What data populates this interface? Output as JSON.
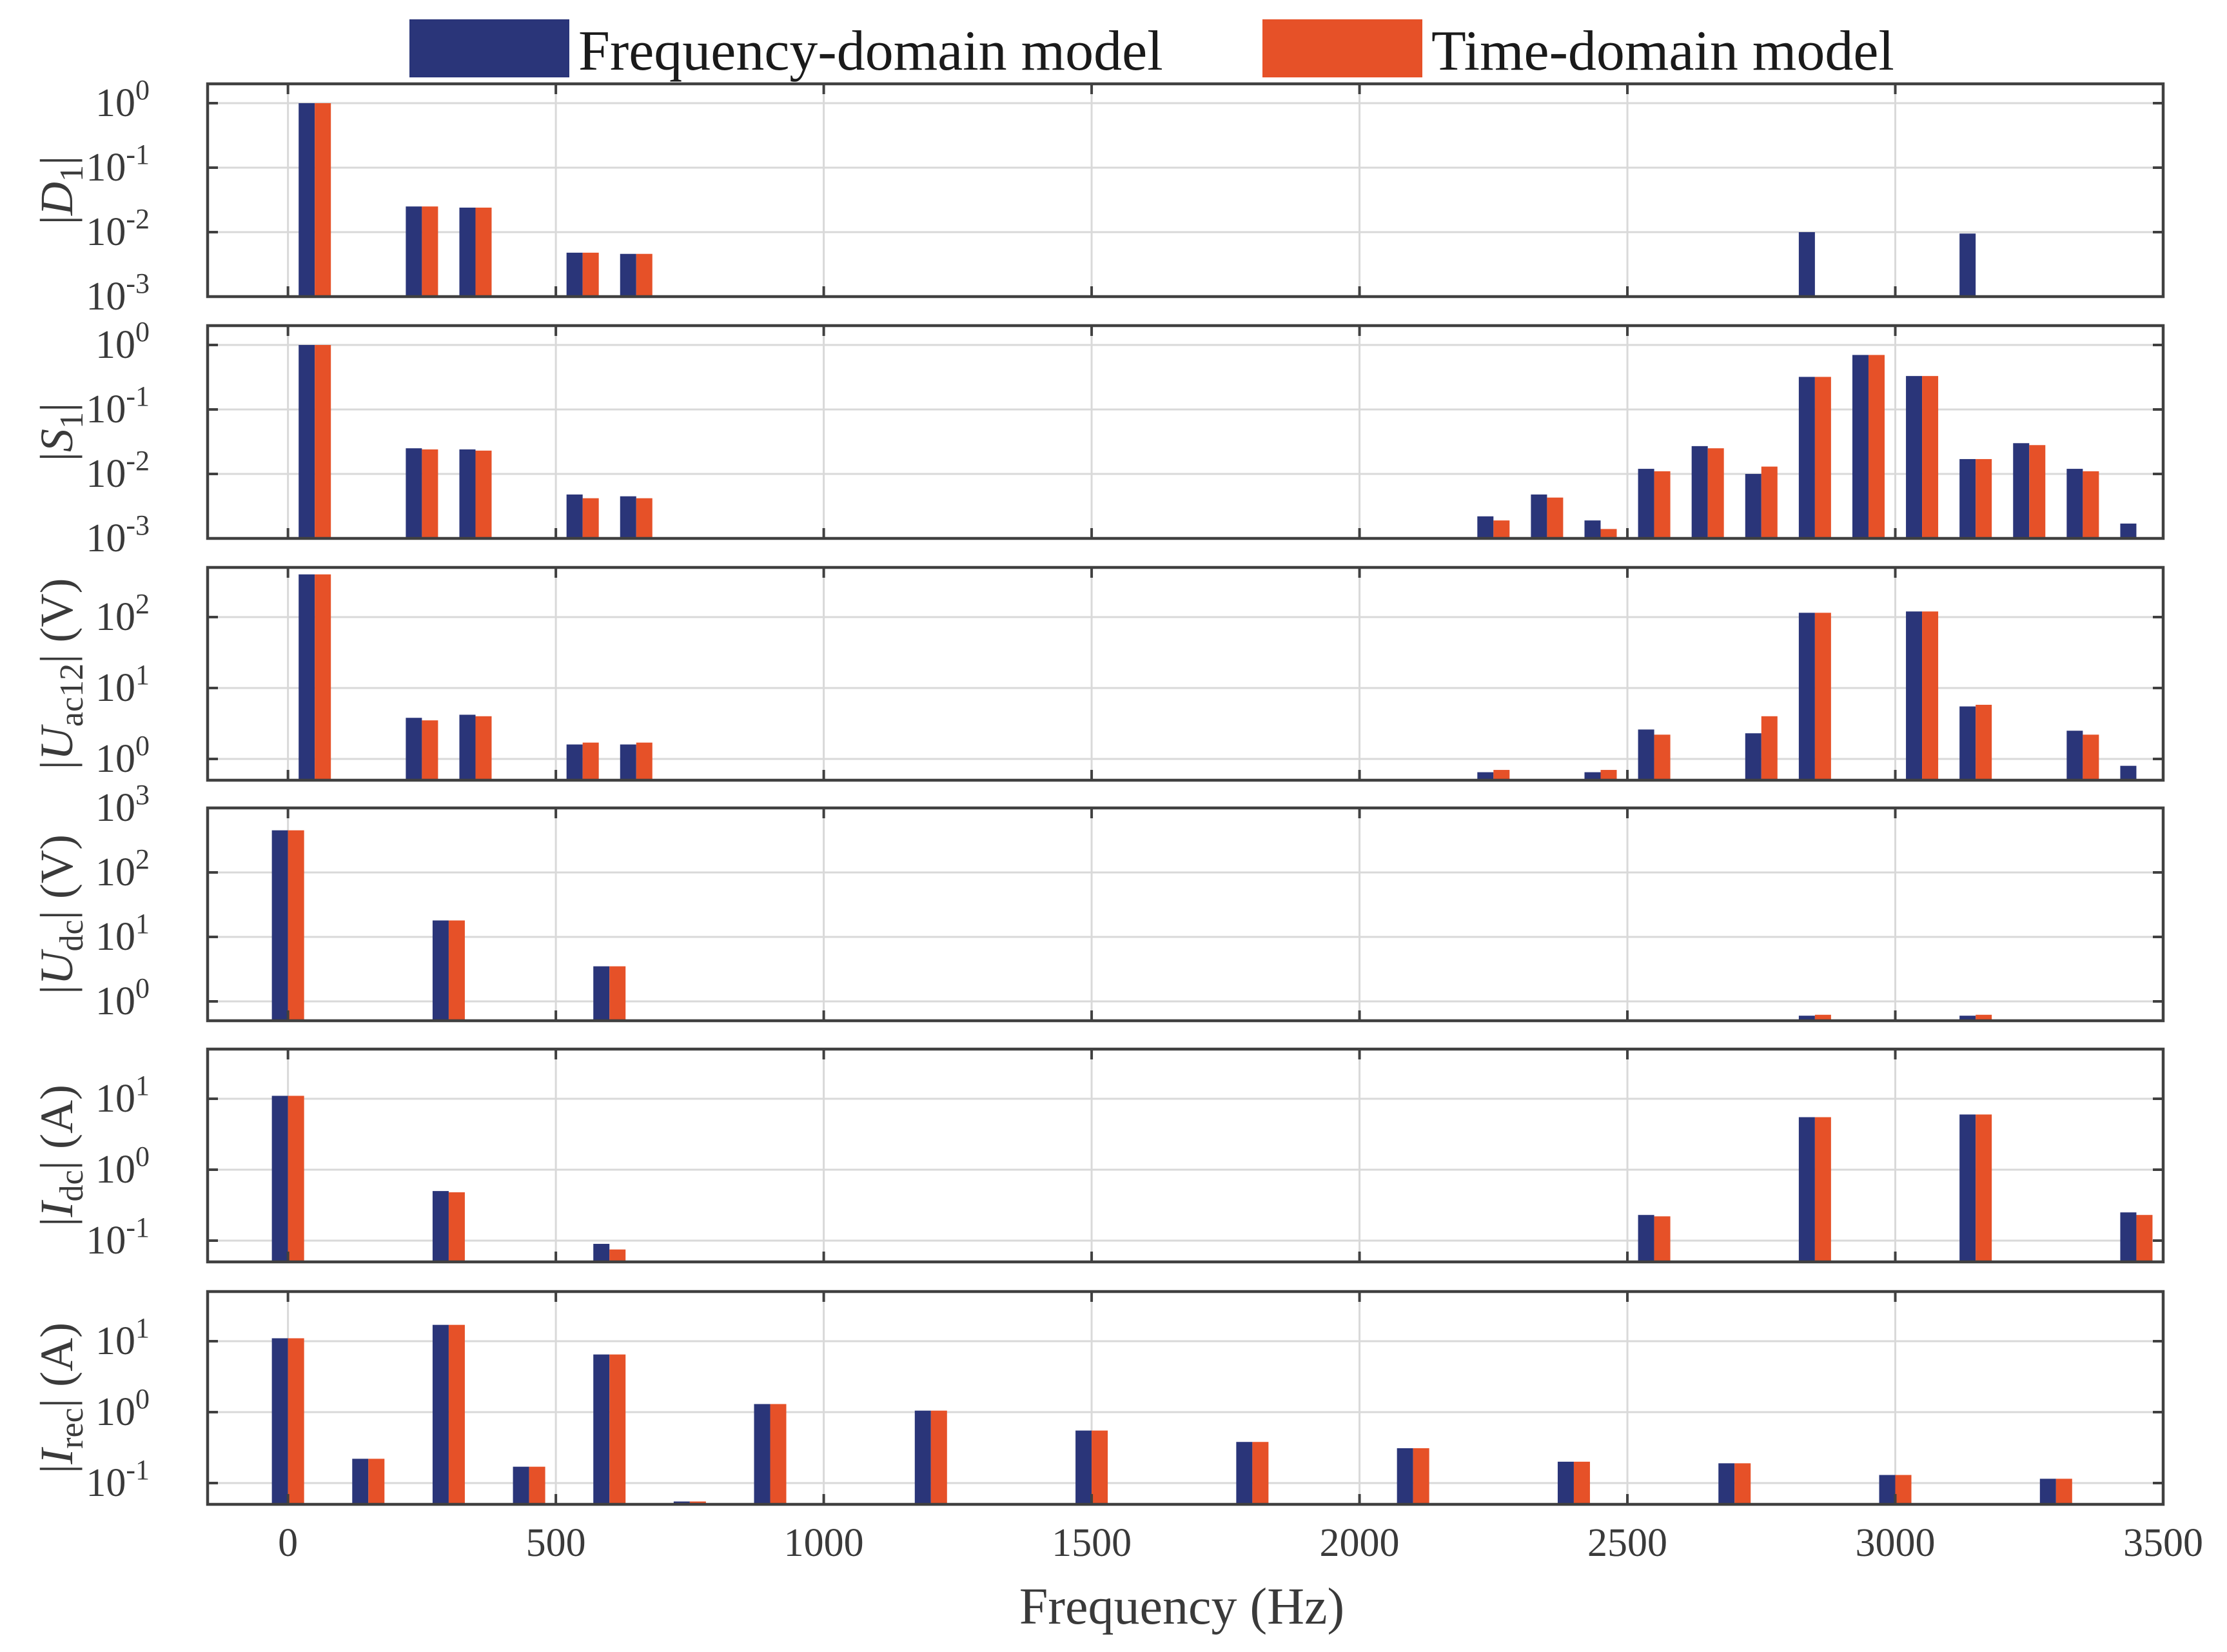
{
  "legend": {
    "entries": [
      {
        "label": "Frequency-domain model",
        "color": "#2a3579"
      },
      {
        "label": "Time-domain model",
        "color": "#e65128"
      }
    ]
  },
  "chart_data": {
    "type": "bar",
    "layout": "6 vertically stacked subplots sharing the x-axis, log-scale y-axes",
    "xlabel": "Frequency (Hz)",
    "xlim": [
      -150,
      3500
    ],
    "xticks": [
      0,
      500,
      1000,
      1500,
      2000,
      2500,
      3000,
      3500
    ],
    "series_names": [
      "Frequency-domain model",
      "Time-domain model"
    ],
    "subplots": [
      {
        "ylabel": {
          "pre": "|",
          "var": "D",
          "sub": "1",
          "post": "|"
        },
        "ylim_log10": [
          -3,
          0.3
        ],
        "yticks": [
          {
            "base": "10",
            "exp": "0",
            "v": 0
          },
          {
            "base": "10",
            "exp": "-1",
            "v": -1
          },
          {
            "base": "10",
            "exp": "-2",
            "v": -2
          },
          {
            "base": "10",
            "exp": "-3",
            "v": -3
          }
        ],
        "bars": [
          {
            "f": 50,
            "fd": 1.0,
            "td": 1.0
          },
          {
            "f": 250,
            "fd": 0.025,
            "td": 0.025
          },
          {
            "f": 350,
            "fd": 0.024,
            "td": 0.024
          },
          {
            "f": 550,
            "fd": 0.0048,
            "td": 0.0048
          },
          {
            "f": 650,
            "fd": 0.0046,
            "td": 0.0046
          },
          {
            "f": 2850,
            "fd": 0.01,
            "td": null
          },
          {
            "f": 3150,
            "fd": 0.0095,
            "td": null
          }
        ]
      },
      {
        "ylabel": {
          "pre": "|",
          "var": "S",
          "sub": "1",
          "post": "|"
        },
        "ylim_log10": [
          -3,
          0.3
        ],
        "yticks": [
          {
            "base": "10",
            "exp": "0",
            "v": 0
          },
          {
            "base": "10",
            "exp": "-1",
            "v": -1
          },
          {
            "base": "10",
            "exp": "-2",
            "v": -2
          },
          {
            "base": "10",
            "exp": "-3",
            "v": -3
          }
        ],
        "bars": [
          {
            "f": 50,
            "fd": 1.0,
            "td": 1.0
          },
          {
            "f": 250,
            "fd": 0.025,
            "td": 0.024
          },
          {
            "f": 350,
            "fd": 0.024,
            "td": 0.023
          },
          {
            "f": 550,
            "fd": 0.0048,
            "td": 0.0042
          },
          {
            "f": 650,
            "fd": 0.0045,
            "td": 0.0042
          },
          {
            "f": 2250,
            "fd": 0.0022,
            "td": 0.0019
          },
          {
            "f": 2350,
            "fd": 0.0048,
            "td": 0.0043
          },
          {
            "f": 2450,
            "fd": 0.0019,
            "td": 0.0014
          },
          {
            "f": 2550,
            "fd": 0.012,
            "td": 0.011
          },
          {
            "f": 2650,
            "fd": 0.027,
            "td": 0.025
          },
          {
            "f": 2750,
            "fd": 0.01,
            "td": 0.013
          },
          {
            "f": 2850,
            "fd": 0.32,
            "td": 0.32
          },
          {
            "f": 2950,
            "fd": 0.7,
            "td": 0.7
          },
          {
            "f": 3050,
            "fd": 0.33,
            "td": 0.33
          },
          {
            "f": 3150,
            "fd": 0.017,
            "td": 0.017
          },
          {
            "f": 3250,
            "fd": 0.03,
            "td": 0.028
          },
          {
            "f": 3350,
            "fd": 0.012,
            "td": 0.011
          },
          {
            "f": 3450,
            "fd": 0.0017,
            "td": null
          }
        ]
      },
      {
        "ylabel": {
          "pre": "|",
          "var": "U",
          "sub": "ac12",
          "post": "| (V)"
        },
        "ylim_log10": [
          -0.3,
          2.7
        ],
        "yticks": [
          {
            "base": "10",
            "exp": "2",
            "v": 2
          },
          {
            "base": "10",
            "exp": "1",
            "v": 1
          },
          {
            "base": "10",
            "exp": "0",
            "v": 0
          }
        ],
        "bars": [
          {
            "f": 50,
            "fd": 400,
            "td": 400
          },
          {
            "f": 250,
            "fd": 3.8,
            "td": 3.5
          },
          {
            "f": 350,
            "fd": 4.2,
            "td": 4.0
          },
          {
            "f": 550,
            "fd": 1.6,
            "td": 1.7
          },
          {
            "f": 650,
            "fd": 1.6,
            "td": 1.7
          },
          {
            "f": 2250,
            "fd": 0.65,
            "td": 0.7
          },
          {
            "f": 2450,
            "fd": 0.65,
            "td": 0.7
          },
          {
            "f": 2550,
            "fd": 2.6,
            "td": 2.2
          },
          {
            "f": 2750,
            "fd": 2.3,
            "td": 4.0
          },
          {
            "f": 2850,
            "fd": 115,
            "td": 115
          },
          {
            "f": 3050,
            "fd": 120,
            "td": 120
          },
          {
            "f": 3150,
            "fd": 5.5,
            "td": 5.8
          },
          {
            "f": 3350,
            "fd": 2.5,
            "td": 2.2
          },
          {
            "f": 3450,
            "fd": 0.8,
            "td": null
          }
        ]
      },
      {
        "ylabel": {
          "pre": "|",
          "var": "U",
          "sub": "dc",
          "post": "| (V)"
        },
        "ylim_log10": [
          -0.3,
          3.0
        ],
        "yticks": [
          {
            "base": "10",
            "exp": "3",
            "v": 3
          },
          {
            "base": "10",
            "exp": "2",
            "v": 2
          },
          {
            "base": "10",
            "exp": "1",
            "v": 1
          },
          {
            "base": "10",
            "exp": "0",
            "v": 0
          }
        ],
        "bars": [
          {
            "f": 0,
            "fd": 450,
            "td": 450
          },
          {
            "f": 300,
            "fd": 18,
            "td": 18
          },
          {
            "f": 600,
            "fd": 3.5,
            "td": 3.5
          },
          {
            "f": 2850,
            "fd": 0.6,
            "td": 0.62
          },
          {
            "f": 3150,
            "fd": 0.6,
            "td": 0.62
          }
        ]
      },
      {
        "ylabel": {
          "pre": "|",
          "var": "I",
          "sub": "dc",
          "post": "| (A)"
        },
        "ylim_log10": [
          -1.3,
          1.7
        ],
        "yticks": [
          {
            "base": "10",
            "exp": "1",
            "v": 1
          },
          {
            "base": "10",
            "exp": "0",
            "v": 0
          },
          {
            "base": "10",
            "exp": "-1",
            "v": -1
          }
        ],
        "bars": [
          {
            "f": 0,
            "fd": 11,
            "td": 11
          },
          {
            "f": 300,
            "fd": 0.5,
            "td": 0.48
          },
          {
            "f": 600,
            "fd": 0.09,
            "td": 0.075
          },
          {
            "f": 2550,
            "fd": 0.23,
            "td": 0.22
          },
          {
            "f": 2850,
            "fd": 5.5,
            "td": 5.5
          },
          {
            "f": 3150,
            "fd": 6.0,
            "td": 6.0
          },
          {
            "f": 3450,
            "fd": 0.25,
            "td": 0.23
          }
        ]
      },
      {
        "ylabel": {
          "pre": "|",
          "var": "I",
          "sub": "rec",
          "post": "| (A)"
        },
        "ylim_log10": [
          -1.3,
          1.7
        ],
        "yticks": [
          {
            "base": "10",
            "exp": "1",
            "v": 1
          },
          {
            "base": "10",
            "exp": "0",
            "v": 0
          },
          {
            "base": "10",
            "exp": "-1",
            "v": -1
          }
        ],
        "bars": [
          {
            "f": 0,
            "fd": 11,
            "td": 11
          },
          {
            "f": 150,
            "fd": 0.22,
            "td": 0.22
          },
          {
            "f": 300,
            "fd": 17,
            "td": 17
          },
          {
            "f": 450,
            "fd": 0.17,
            "td": 0.17
          },
          {
            "f": 600,
            "fd": 6.5,
            "td": 6.5
          },
          {
            "f": 750,
            "fd": 0.055,
            "td": 0.055
          },
          {
            "f": 900,
            "fd": 1.3,
            "td": 1.3
          },
          {
            "f": 1200,
            "fd": 1.05,
            "td": 1.05
          },
          {
            "f": 1500,
            "fd": 0.55,
            "td": 0.55
          },
          {
            "f": 1800,
            "fd": 0.38,
            "td": 0.38
          },
          {
            "f": 2100,
            "fd": 0.31,
            "td": 0.31
          },
          {
            "f": 2400,
            "fd": 0.2,
            "td": 0.2
          },
          {
            "f": 2700,
            "fd": 0.19,
            "td": 0.19
          },
          {
            "f": 3000,
            "fd": 0.13,
            "td": 0.13
          },
          {
            "f": 3300,
            "fd": 0.115,
            "td": 0.115
          }
        ]
      }
    ]
  }
}
